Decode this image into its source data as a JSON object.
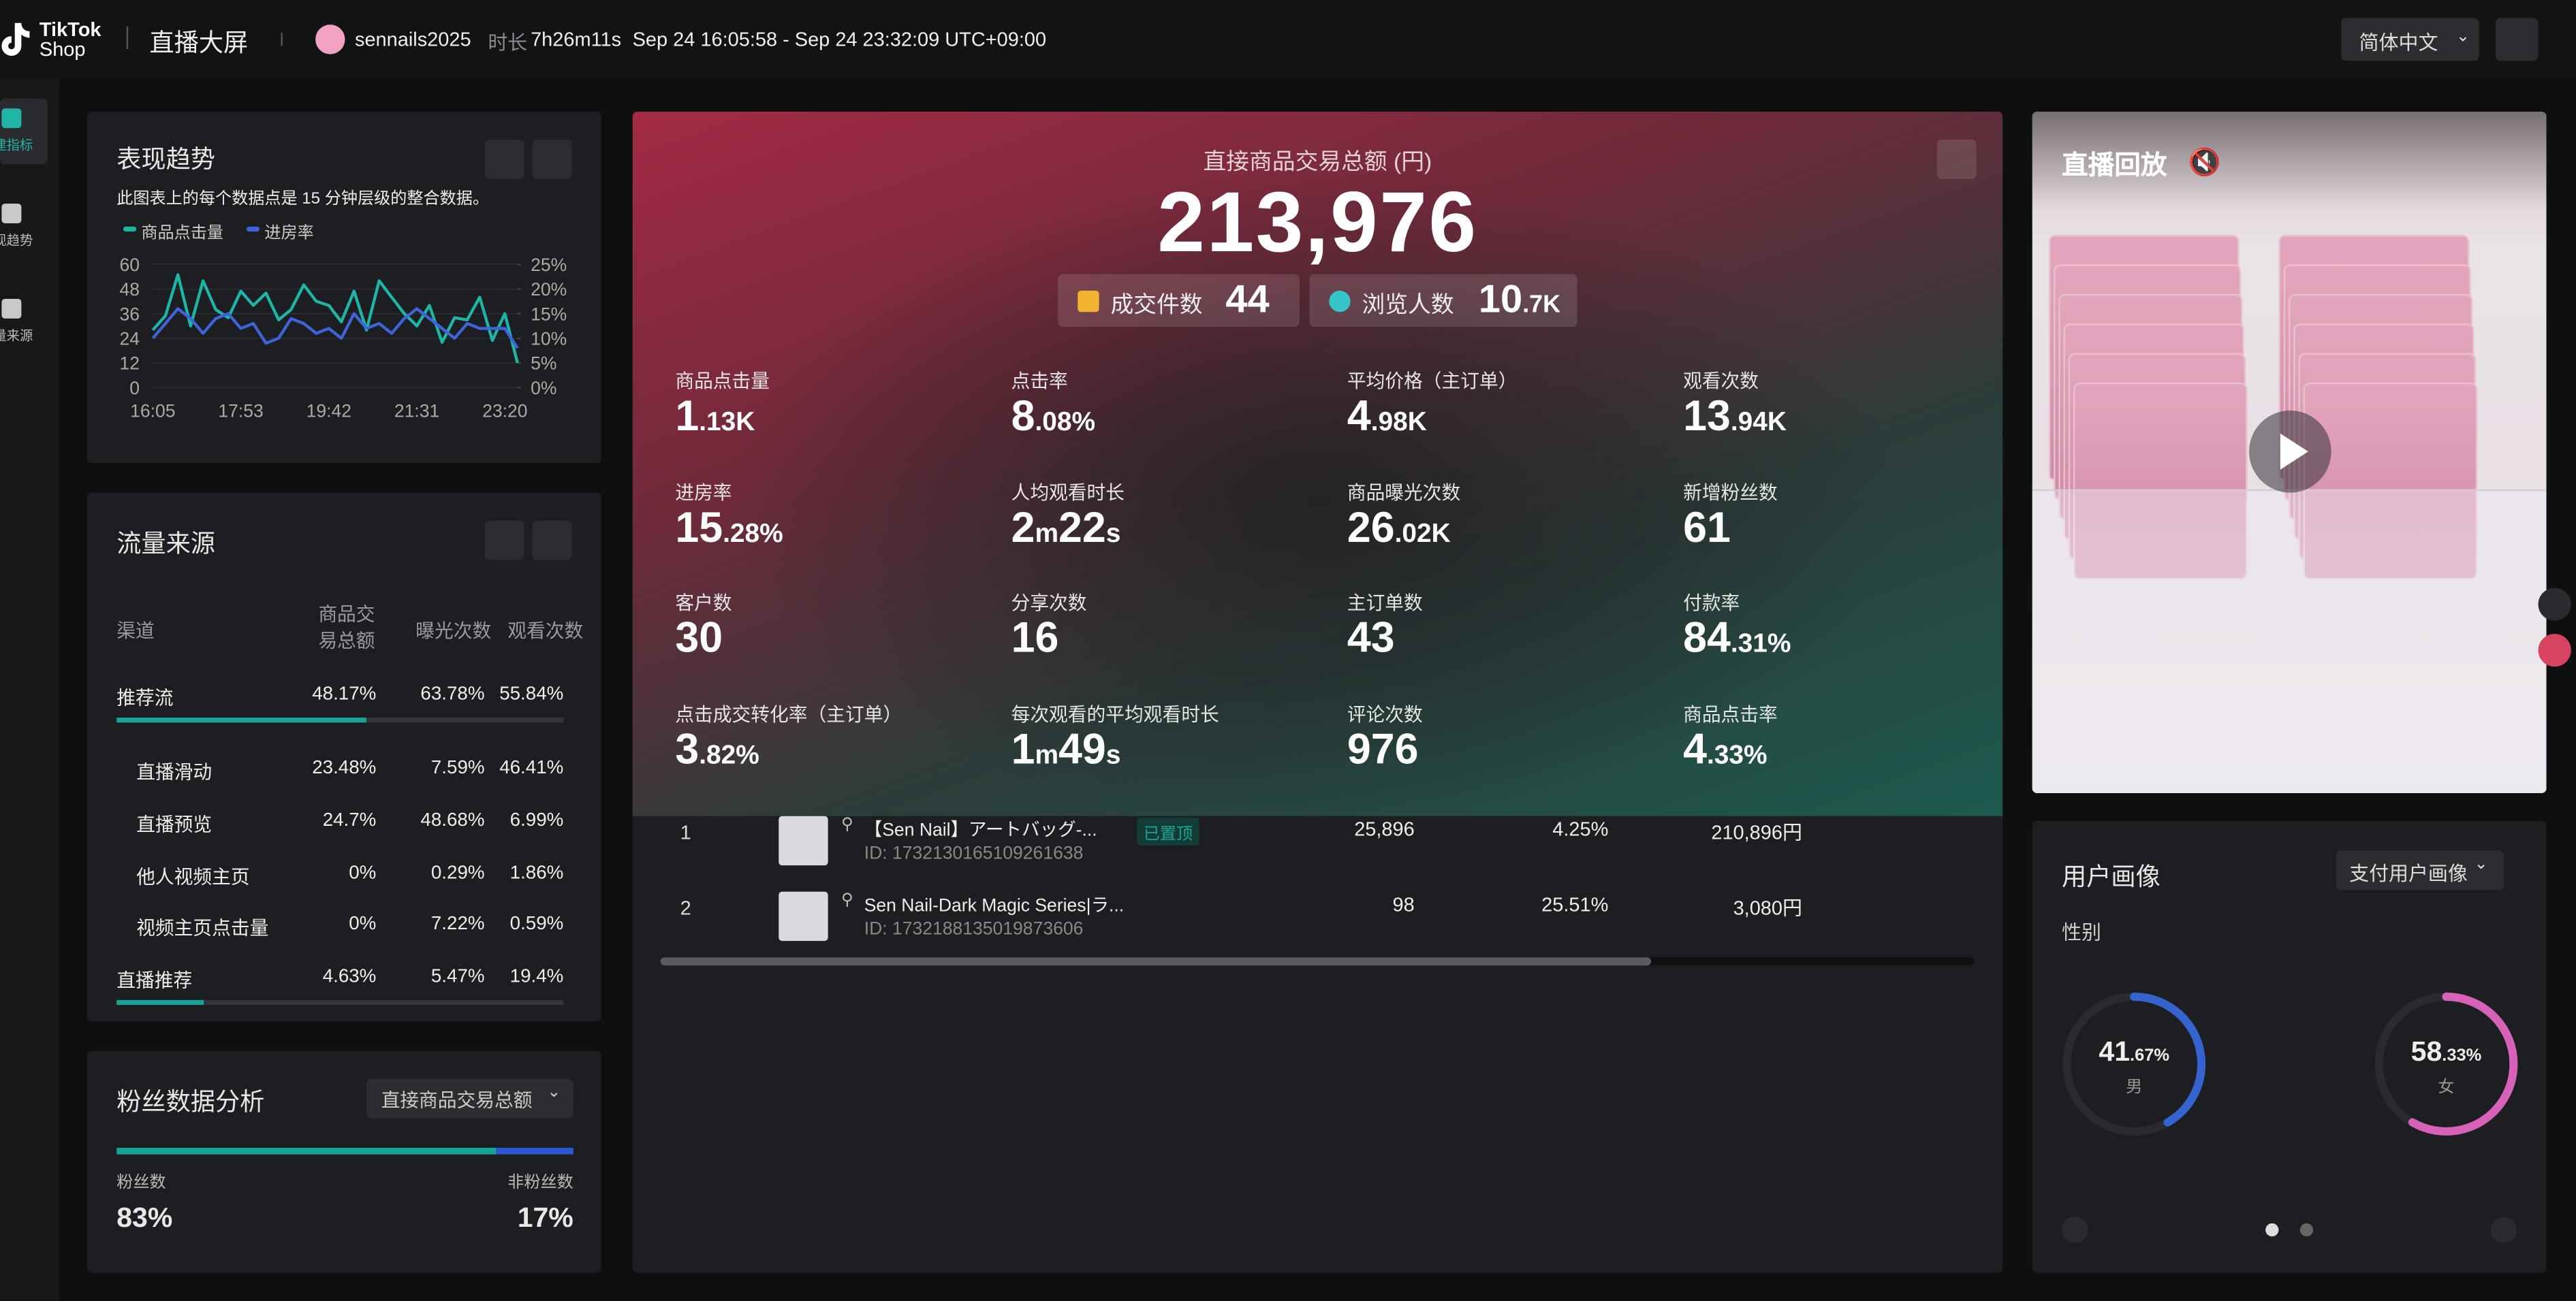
{
  "header": {
    "logo": [
      "TikTok",
      "Shop"
    ],
    "title": "直播大屏",
    "account": "sennails2025",
    "duration_label": "时长",
    "duration": "7h26m11s",
    "time_range": "Sep 24 16:05:58 - Sep 24 23:32:09 UTC+09:00",
    "language": "简体中文"
  },
  "sidebar": [
    "建指标",
    "现趋势",
    "量来源"
  ],
  "trend": {
    "title": "表现趋势",
    "note": "此图表上的每个数据点是 15 分钟层级的整合数据。",
    "chart": {
      "type": "line",
      "categories": [
        "16:05",
        null,
        null,
        null,
        null,
        null,
        null,
        "17:53",
        null,
        null,
        null,
        null,
        null,
        null,
        "19:42",
        null,
        null,
        null,
        null,
        null,
        null,
        "21:31",
        null,
        null,
        null,
        null,
        null,
        null,
        "23:20",
        null
      ],
      "series": [
        {
          "name": "商品点击量",
          "color": "#1fb5a6",
          "values": [
            28,
            35,
            55,
            30,
            52,
            38,
            34,
            47,
            40,
            46,
            33,
            38,
            50,
            42,
            40,
            32,
            47,
            28,
            52,
            44,
            36,
            30,
            40,
            22,
            34,
            33,
            44,
            23,
            36,
            12
          ]
        },
        {
          "name": "进房率",
          "color": "#3d64d8",
          "axis": "y2",
          "values": [
            10,
            13,
            16,
            14,
            11,
            14,
            15,
            12,
            13,
            9,
            10,
            14,
            13,
            11,
            12,
            10,
            15,
            12,
            13,
            11,
            14,
            16,
            14,
            12,
            10,
            13,
            12,
            12,
            12,
            8
          ]
        }
      ],
      "ylim": [
        0,
        60
      ],
      "yticks": [
        0,
        12,
        24,
        36,
        48,
        60
      ],
      "y2lim": [
        0,
        25
      ],
      "y2ticks": [
        {
          "value": 0,
          "label": "0%"
        },
        {
          "value": 5,
          "label": "5%"
        },
        {
          "value": 10,
          "label": "10%"
        },
        {
          "value": 15,
          "label": "15%"
        },
        {
          "value": 20,
          "label": "20%"
        },
        {
          "value": 25,
          "label": "25%"
        }
      ],
      "grid": true
    }
  },
  "traffic": {
    "title": "流量来源",
    "headers": [
      "渠道",
      "商品交易总额",
      "曝光次数",
      "观看次数"
    ],
    "rows": [
      {
        "name": "推荐流",
        "values": [
          "48.17%",
          "63.78%",
          "55.84%"
        ],
        "level": 0
      },
      {
        "name": "直播滑动",
        "values": [
          "23.48%",
          "7.59%",
          "46.41%"
        ],
        "level": 1
      },
      {
        "name": "直播预览",
        "values": [
          "24.7%",
          "48.68%",
          "6.99%"
        ],
        "level": 1
      },
      {
        "name": "他人视频主页",
        "values": [
          "0%",
          "0.29%",
          "1.86%"
        ],
        "level": 1
      },
      {
        "name": "视频主页点击量",
        "values": [
          "0%",
          "7.22%",
          "0.59%"
        ],
        "level": 1
      },
      {
        "name": "直播推荐",
        "values": [
          "4.63%",
          "5.47%",
          "19.4%"
        ],
        "level": 0
      }
    ]
  },
  "fans": {
    "title": "粉丝数据分析",
    "dropdown": "直接商品交易总额",
    "fan_label": "粉丝数",
    "fan_value": "83%",
    "nonfan_label": "非粉丝数",
    "nonfan_value": "17%"
  },
  "main": {
    "gmv_label": "直接商品交易总额 (円)",
    "gmv": "213,976",
    "chips": [
      {
        "label": "成交件数",
        "value": "44"
      },
      {
        "label": "浏览人数",
        "value": "10.7K"
      }
    ],
    "metrics": [
      {
        "label": "商品点击量",
        "value": "1.13K"
      },
      {
        "label": "点击率",
        "value": "8.08%"
      },
      {
        "label": "平均价格（主订单）",
        "value": "4.98K"
      },
      {
        "label": "观看次数",
        "value": "13.94K"
      },
      {
        "label": "进房率",
        "value": "15.28%"
      },
      {
        "label": "人均观看时长",
        "value": "2m22s"
      },
      {
        "label": "商品曝光次数",
        "value": "26.02K"
      },
      {
        "label": "新增粉丝数",
        "value": "61"
      },
      {
        "label": "客户数",
        "value": "30"
      },
      {
        "label": "分享次数",
        "value": "16"
      },
      {
        "label": "主订单数",
        "value": "43"
      },
      {
        "label": "付款率",
        "value": "84.31%"
      },
      {
        "label": "点击成交转化率（主订单）",
        "value": "3.82%"
      },
      {
        "label": "每次观看的平均观看时长",
        "value": "1m49s"
      },
      {
        "label": "评论次数",
        "value": "976"
      },
      {
        "label": "商品点击率",
        "value": "4.33%"
      }
    ],
    "products": [
      {
        "rank": "1",
        "name": "【Sen Nail】アートバッグ-...",
        "id": "ID: 1732130165109261638",
        "badge": "已置顶",
        "cells": [
          "25,896",
          "4.25%",
          "210,896円"
        ]
      },
      {
        "rank": "2",
        "name": "Sen Nail-Dark Magic Series|ラ...",
        "id": "ID: 1732188135019873606",
        "cells": [
          "98",
          "25.51%",
          "3,080円"
        ]
      }
    ]
  },
  "replay": {
    "title": "直播回放"
  },
  "portrait": {
    "title": "用户画像",
    "dropdown": "支付用户画像",
    "section": "性别",
    "genders": [
      {
        "value": "41.67%",
        "label": "男",
        "color": "#3563d0"
      },
      {
        "value": "58.33%",
        "label": "女",
        "color": "#d862b9"
      }
    ]
  }
}
